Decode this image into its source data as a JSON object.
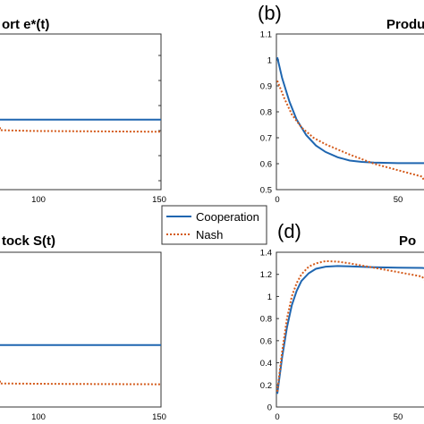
{
  "chart_data": [
    {
      "id": "a",
      "type": "line",
      "title": "ort e*(t)",
      "panel_label": "",
      "xticks": [
        100,
        150
      ],
      "yticks": [],
      "series": [
        {
          "name": "Cooperation",
          "x": [
            0,
            150
          ],
          "y": [
            0.45,
            0.45
          ]
        },
        {
          "name": "Nash",
          "x": [
            0,
            20,
            50,
            80,
            110,
            150
          ],
          "y": [
            0.4,
            0.395,
            0.388,
            0.382,
            0.377,
            0.372
          ]
        }
      ]
    },
    {
      "id": "b",
      "type": "line",
      "title": "Produ",
      "panel_label": "(b)",
      "ylim": [
        0.5,
        1.1
      ],
      "yticks": [
        "0.5",
        "0.6",
        "0.7",
        "0.8",
        "0.9",
        "1",
        "1.1"
      ],
      "xticks": [
        "0",
        "50"
      ],
      "series": [
        {
          "name": "Cooperation",
          "x": [
            0,
            2,
            5,
            8,
            12,
            16,
            20,
            25,
            30,
            35,
            40,
            50,
            60,
            70
          ],
          "y": [
            1.01,
            0.93,
            0.84,
            0.77,
            0.71,
            0.67,
            0.645,
            0.625,
            0.612,
            0.607,
            0.604,
            0.602,
            0.602,
            0.602
          ]
        },
        {
          "name": "Nash",
          "x": [
            0,
            3,
            6,
            10,
            15,
            20,
            25,
            30,
            40,
            50,
            60,
            70
          ],
          "y": [
            0.92,
            0.85,
            0.79,
            0.74,
            0.7,
            0.675,
            0.655,
            0.635,
            0.6,
            0.575,
            0.55,
            0.535
          ]
        }
      ]
    },
    {
      "id": "c",
      "type": "line",
      "title": "tock S(t)",
      "panel_label": "",
      "xticks": [
        100,
        150
      ],
      "yticks": [],
      "series": [
        {
          "name": "Cooperation",
          "x": [
            0,
            150
          ],
          "y": [
            0.4,
            0.4
          ]
        },
        {
          "name": "Nash",
          "x": [
            0,
            30,
            60,
            90,
            120,
            150
          ],
          "y": [
            0.17,
            0.162,
            0.156,
            0.152,
            0.149,
            0.147
          ]
        }
      ]
    },
    {
      "id": "d",
      "type": "line",
      "title": "Po",
      "panel_label": "(d)",
      "ylim": [
        0,
        1.4
      ],
      "yticks": [
        "0",
        "0.2",
        "0.4",
        "0.6",
        "0.8",
        "1",
        "1.2",
        "1.4"
      ],
      "xticks": [
        "0",
        "50"
      ],
      "series": [
        {
          "name": "Cooperation",
          "x": [
            0,
            2,
            4,
            6,
            8,
            10,
            13,
            16,
            20,
            25,
            30,
            40,
            50,
            60,
            70
          ],
          "y": [
            0.12,
            0.45,
            0.72,
            0.92,
            1.05,
            1.14,
            1.21,
            1.25,
            1.27,
            1.275,
            1.272,
            1.265,
            1.26,
            1.258,
            1.257
          ]
        },
        {
          "name": "Nash",
          "x": [
            0,
            2,
            4,
            6,
            8,
            10,
            13,
            16,
            20,
            25,
            30,
            40,
            50,
            60,
            70
          ],
          "y": [
            0.14,
            0.5,
            0.8,
            1.0,
            1.12,
            1.2,
            1.27,
            1.3,
            1.32,
            1.315,
            1.3,
            1.26,
            1.22,
            1.18,
            1.15
          ]
        }
      ]
    }
  ],
  "legend": {
    "items": [
      "Cooperation",
      "Nash"
    ],
    "colors": [
      "#1f66b0",
      "#d45a1a"
    ]
  }
}
